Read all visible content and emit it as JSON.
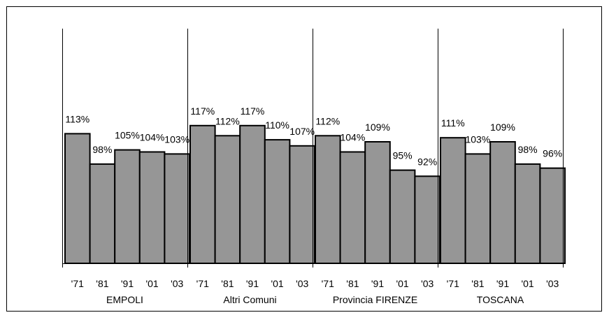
{
  "chart_data": {
    "type": "bar",
    "groups": [
      {
        "label": "EMPOLI",
        "categories": [
          "'71",
          "'81",
          "'91",
          "'01",
          "'03"
        ],
        "values": [
          113,
          98,
          105,
          104,
          103
        ],
        "value_labels": [
          "113%",
          "98%",
          "105%",
          "104%",
          "103%"
        ]
      },
      {
        "label": "Altri Comuni",
        "categories": [
          "'71",
          "'81",
          "'91",
          "'01",
          "'03"
        ],
        "values": [
          117,
          112,
          117,
          110,
          107
        ],
        "value_labels": [
          "117%",
          "112%",
          "117%",
          "110%",
          "107%"
        ]
      },
      {
        "label": "Provincia FIRENZE",
        "categories": [
          "'71",
          "'81",
          "'91",
          "'01",
          "'03"
        ],
        "values": [
          112,
          104,
          109,
          95,
          92
        ],
        "value_labels": [
          "112%",
          "104%",
          "109%",
          "95%",
          "92%"
        ]
      },
      {
        "label": "TOSCANA",
        "categories": [
          "'71",
          "'81",
          "'91",
          "'01",
          "'03"
        ],
        "values": [
          111,
          103,
          109,
          98,
          96
        ],
        "value_labels": [
          "111%",
          "103%",
          "109%",
          "98%",
          "96%"
        ]
      }
    ],
    "ylim": [
      49,
      120
    ],
    "grid": false,
    "legend": "none",
    "bar_color": "#969696",
    "bar_stroke": "#000000",
    "title": "",
    "xlabel": "",
    "ylabel": ""
  }
}
